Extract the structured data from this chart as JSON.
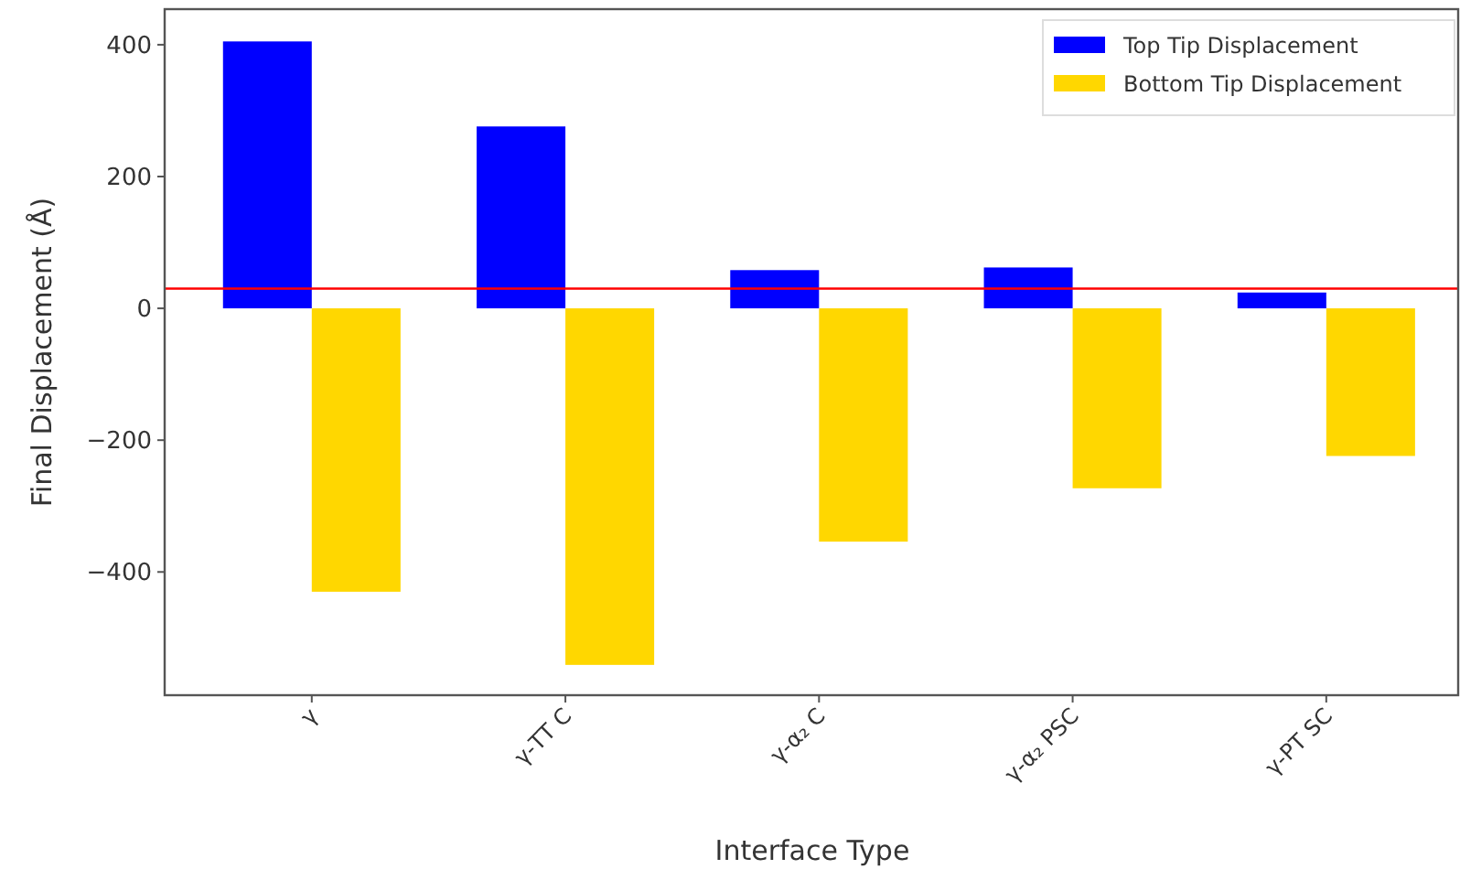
{
  "chart_data": {
    "type": "bar",
    "xlabel": "Interface Type",
    "ylabel": "Final Displacement (Å)",
    "categories": [
      "γ",
      "γ-TT C",
      "γ-α₂ C",
      "γ-α₂ PSC",
      "γ-PT SC"
    ],
    "series": [
      {
        "name": "Top Tip Displacement",
        "color": "#0000ff",
        "values": [
          405,
          276,
          58,
          62,
          24
        ]
      },
      {
        "name": "Bottom Tip Displacement",
        "color": "#ffd700",
        "values": [
          -430,
          -541,
          -354,
          -273,
          -224
        ]
      }
    ],
    "ylim": [
      -587,
      454
    ],
    "yticks": [
      -400,
      -200,
      0,
      200,
      400
    ],
    "grid": false,
    "legend": "top right",
    "ref_lines": [
      {
        "axis": "y",
        "value": 30,
        "color": "#ff0000"
      }
    ]
  }
}
